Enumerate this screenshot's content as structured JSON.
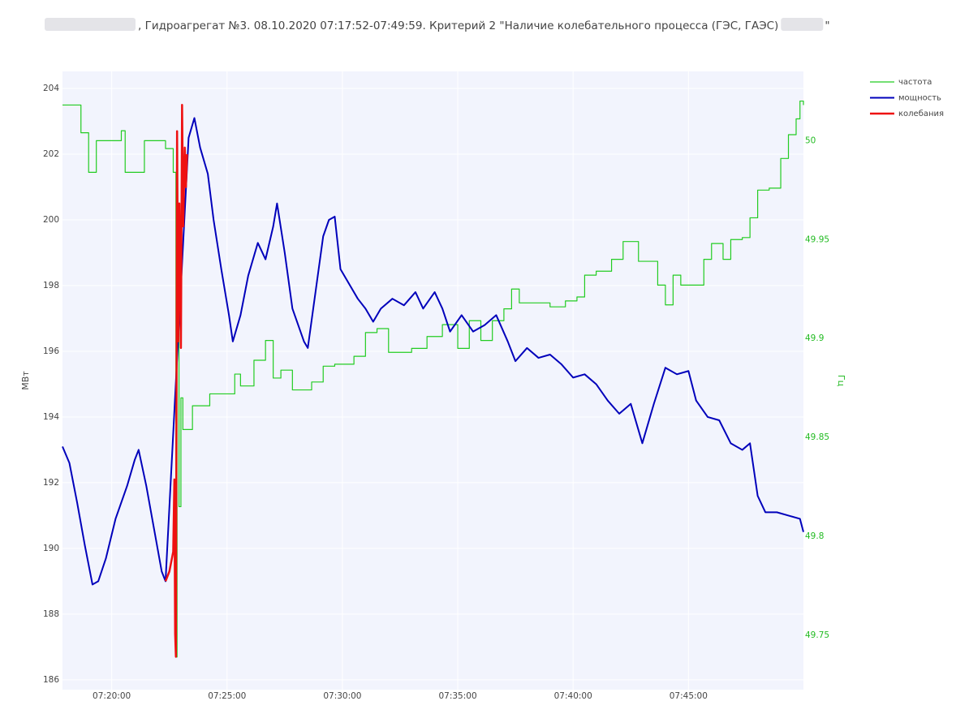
{
  "chart_data": {
    "type": "line",
    "title_parts": [
      ", Гидроагрегат №3. 08.10.2020 07:17:52-07:49:59. Критерий 2 \"Наличие колебательного процесса (ГЭС, ГАЭС)",
      "\""
    ],
    "y_label": "МВт",
    "y2_label": "Гц",
    "y2_color": "#22bb22",
    "xlim": [
      "07:17:52",
      "07:49:59"
    ],
    "xticks": [
      "07:20:00",
      "07:25:00",
      "07:30:00",
      "07:35:00",
      "07:40:00",
      "07:45:00"
    ],
    "ylim": [
      185.7,
      204.52
    ],
    "yticks": [
      186,
      188,
      190,
      192,
      194,
      196,
      198,
      200,
      202,
      204
    ],
    "y2lim": [
      49.7225,
      50.035
    ],
    "y2ticks": [
      49.75,
      49.8,
      49.85,
      49.9,
      49.95,
      50
    ],
    "grid": true,
    "legend": "top-right",
    "series": [
      {
        "name": "частота",
        "color": "#22cc22",
        "axis": "y2",
        "shape": "step",
        "width": 1.2,
        "x": [
          "07:17:52",
          "07:18:40",
          "07:19:00",
          "07:19:20",
          "07:20:25",
          "07:20:35",
          "07:21:10",
          "07:21:25",
          "07:22:20",
          "07:22:40",
          "07:22:47",
          "07:22:50",
          "07:22:55",
          "07:23:00",
          "07:23:05",
          "07:23:30",
          "07:24:15",
          "07:25:20",
          "07:25:35",
          "07:26:10",
          "07:26:40",
          "07:27:00",
          "07:27:20",
          "07:27:50",
          "07:28:40",
          "07:29:10",
          "07:29:40",
          "07:30:30",
          "07:31:00",
          "07:31:30",
          "07:32:00",
          "07:33:00",
          "07:33:40",
          "07:34:20",
          "07:35:00",
          "07:35:30",
          "07:36:00",
          "07:36:30",
          "07:37:00",
          "07:37:20",
          "07:37:40",
          "07:39:00",
          "07:39:40",
          "07:40:10",
          "07:40:30",
          "07:41:00",
          "07:41:40",
          "07:42:10",
          "07:42:50",
          "07:43:40",
          "07:44:00",
          "07:44:20",
          "07:44:40",
          "07:45:40",
          "07:46:00",
          "07:46:30",
          "07:46:50",
          "07:47:20",
          "07:47:40",
          "07:48:00",
          "07:48:30",
          "07:49:00",
          "07:49:20",
          "07:49:40",
          "07:49:50",
          "07:49:59"
        ],
        "values": [
          50.018,
          50.004,
          49.984,
          50.0,
          50.005,
          49.984,
          49.984,
          50.0,
          49.996,
          49.984,
          49.739,
          49.932,
          49.815,
          49.87,
          49.854,
          49.866,
          49.872,
          49.882,
          49.876,
          49.889,
          49.899,
          49.88,
          49.884,
          49.874,
          49.878,
          49.886,
          49.887,
          49.891,
          49.903,
          49.905,
          49.893,
          49.895,
          49.901,
          49.907,
          49.895,
          49.909,
          49.899,
          49.909,
          49.915,
          49.925,
          49.918,
          49.916,
          49.919,
          49.921,
          49.932,
          49.934,
          49.94,
          49.949,
          49.939,
          49.927,
          49.917,
          49.932,
          49.927,
          49.94,
          49.948,
          49.94,
          49.95,
          49.951,
          49.961,
          49.975,
          49.976,
          49.991,
          50.003,
          50.011,
          50.02,
          50.018
        ]
      },
      {
        "name": "мощность",
        "color": "#0000bb",
        "axis": "y",
        "shape": "linear",
        "width": 2,
        "x": [
          "07:17:52",
          "07:18:10",
          "07:18:30",
          "07:18:50",
          "07:19:10",
          "07:19:25",
          "07:19:45",
          "07:20:10",
          "07:20:40",
          "07:21:00",
          "07:21:10",
          "07:21:30",
          "07:21:50",
          "07:22:10",
          "07:22:20",
          "07:23:20",
          "07:23:35",
          "07:23:50",
          "07:24:10",
          "07:24:25",
          "07:24:45",
          "07:25:05",
          "07:25:15",
          "07:25:35",
          "07:25:55",
          "07:26:20",
          "07:26:40",
          "07:27:00",
          "07:27:10",
          "07:27:30",
          "07:27:50",
          "07:28:20",
          "07:28:30",
          "07:28:50",
          "07:29:10",
          "07:29:25",
          "07:29:40",
          "07:29:55",
          "07:30:20",
          "07:30:40",
          "07:31:00",
          "07:31:20",
          "07:31:40",
          "07:32:10",
          "07:32:40",
          "07:33:10",
          "07:33:30",
          "07:34:00",
          "07:34:20",
          "07:34:40",
          "07:35:10",
          "07:35:40",
          "07:36:10",
          "07:36:40",
          "07:37:10",
          "07:37:30",
          "07:38:00",
          "07:38:30",
          "07:39:00",
          "07:39:30",
          "07:40:00",
          "07:40:30",
          "07:41:00",
          "07:41:30",
          "07:42:00",
          "07:42:30",
          "07:43:00",
          "07:43:30",
          "07:44:00",
          "07:44:30",
          "07:45:00",
          "07:45:20",
          "07:45:50",
          "07:46:20",
          "07:46:50",
          "07:47:20",
          "07:47:40",
          "07:48:00",
          "07:48:20",
          "07:48:50",
          "07:49:20",
          "07:49:50",
          "07:49:59"
        ],
        "values": [
          193.1,
          192.6,
          191.4,
          190.1,
          188.9,
          189.0,
          189.7,
          190.9,
          191.9,
          192.7,
          193.0,
          191.9,
          190.6,
          189.3,
          189.0,
          202.5,
          203.1,
          202.2,
          201.4,
          200.0,
          198.5,
          197.1,
          196.3,
          197.1,
          198.3,
          199.3,
          198.8,
          199.8,
          200.5,
          199.0,
          197.3,
          196.3,
          196.1,
          197.8,
          199.5,
          200.0,
          200.1,
          198.5,
          198.0,
          197.6,
          197.3,
          196.9,
          197.3,
          197.6,
          197.4,
          197.8,
          197.3,
          197.8,
          197.3,
          196.6,
          197.1,
          196.6,
          196.8,
          197.1,
          196.3,
          195.7,
          196.1,
          195.8,
          195.9,
          195.6,
          195.2,
          195.3,
          195.0,
          194.5,
          194.1,
          194.4,
          193.2,
          194.4,
          195.5,
          195.3,
          195.4,
          194.5,
          194.0,
          193.9,
          193.2,
          193.0,
          193.2,
          191.6,
          191.1,
          191.1,
          191.0,
          190.9,
          190.5
        ]
      },
      {
        "name": "колебания",
        "color": "#ee1111",
        "axis": "y",
        "shape": "linear",
        "width": 2.5,
        "x": [
          "07:22:20",
          "07:22:30",
          "07:22:40",
          "07:22:43",
          "07:22:45",
          "07:22:47",
          "07:22:50",
          "07:22:53",
          "07:22:56",
          "07:23:00",
          "07:23:03",
          "07:23:06",
          "07:23:10",
          "07:23:13",
          "07:23:16"
        ],
        "values": [
          189.0,
          189.3,
          189.9,
          192.1,
          187.4,
          186.7,
          202.7,
          196.3,
          200.5,
          196.1,
          203.5,
          199.8,
          202.2,
          201.0,
          202.0
        ]
      }
    ]
  }
}
